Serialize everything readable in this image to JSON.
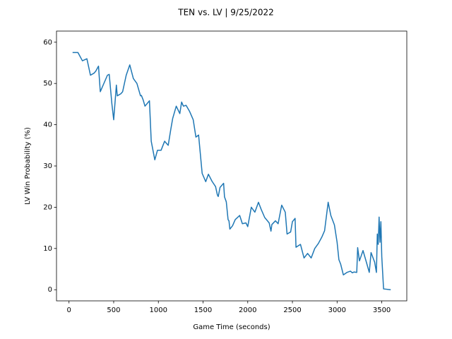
{
  "chart_data": {
    "type": "line",
    "title": "TEN vs. LV | 9/25/2022",
    "xlabel": "Game Time (seconds)",
    "ylabel": "LV Win Probability (%)",
    "x": [
      40,
      100,
      150,
      200,
      240,
      280,
      300,
      330,
      350,
      400,
      430,
      450,
      480,
      500,
      530,
      540,
      580,
      600,
      640,
      680,
      720,
      760,
      800,
      810,
      830,
      850,
      900,
      920,
      960,
      990,
      1030,
      1070,
      1110,
      1140,
      1160,
      1200,
      1240,
      1260,
      1280,
      1310,
      1350,
      1390,
      1420,
      1450,
      1490,
      1530,
      1560,
      1600,
      1640,
      1660,
      1670,
      1690,
      1730,
      1740,
      1760,
      1780,
      1790,
      1800,
      1830,
      1860,
      1910,
      1940,
      1980,
      2000,
      2040,
      2080,
      2120,
      2150,
      2190,
      2240,
      2260,
      2270,
      2310,
      2340,
      2380,
      2420,
      2440,
      2480,
      2500,
      2530,
      2540,
      2590,
      2630,
      2670,
      2710,
      2750,
      2790,
      2830,
      2860,
      2900,
      2930,
      2970,
      3000,
      3020,
      3040,
      3070,
      3110,
      3150,
      3170,
      3190,
      3220,
      3230,
      3250,
      3290,
      3330,
      3360,
      3380,
      3420,
      3440,
      3450,
      3460,
      3470,
      3480,
      3490,
      3500,
      3520,
      3600
    ],
    "series": [
      {
        "name": "LV",
        "color": "#1f77b4",
        "values": [
          57.5,
          57.5,
          55.5,
          56,
          52,
          52.5,
          53,
          54.2,
          48,
          50.5,
          52,
          52.2,
          45,
          41.2,
          49.6,
          47,
          47.5,
          48,
          52,
          54.5,
          51.2,
          50,
          47,
          47.1,
          46,
          44.5,
          45.8,
          36,
          31.5,
          33.8,
          33.8,
          36,
          35,
          39,
          41.5,
          44.5,
          42.7,
          45.5,
          44.5,
          44.7,
          43.2,
          41.2,
          37,
          37.5,
          28.2,
          26.2,
          28,
          26.3,
          25,
          23,
          22.6,
          24.8,
          25.8,
          22.5,
          21.3,
          17,
          16.7,
          14.7,
          15.5,
          17,
          18,
          16,
          16.2,
          15.3,
          20,
          18.8,
          21.2,
          19.5,
          17.5,
          16.2,
          14.2,
          15.8,
          16.7,
          16,
          20.5,
          18.8,
          13.5,
          14,
          16.5,
          17.3,
          10.3,
          11,
          7.7,
          8.8,
          7.7,
          10,
          11.2,
          12.8,
          14.3,
          21.2,
          18,
          15.7,
          11.5,
          7.3,
          6.2,
          3.6,
          4.2,
          4.5,
          4.1,
          4.3,
          4.2,
          10.2,
          7,
          9.5,
          6.5,
          4.2,
          9,
          6.7,
          4.2,
          13.5,
          11,
          17.6,
          11.5,
          16.5,
          8,
          0.2,
          0
        ]
      }
    ],
    "xlim": [
      -140,
      3780
    ],
    "ylim": [
      -2.7,
      62.7
    ],
    "xticks": [
      0,
      500,
      1000,
      1500,
      2000,
      2500,
      3000,
      3500
    ],
    "yticks": [
      0,
      10,
      20,
      30,
      40,
      50,
      60
    ]
  }
}
